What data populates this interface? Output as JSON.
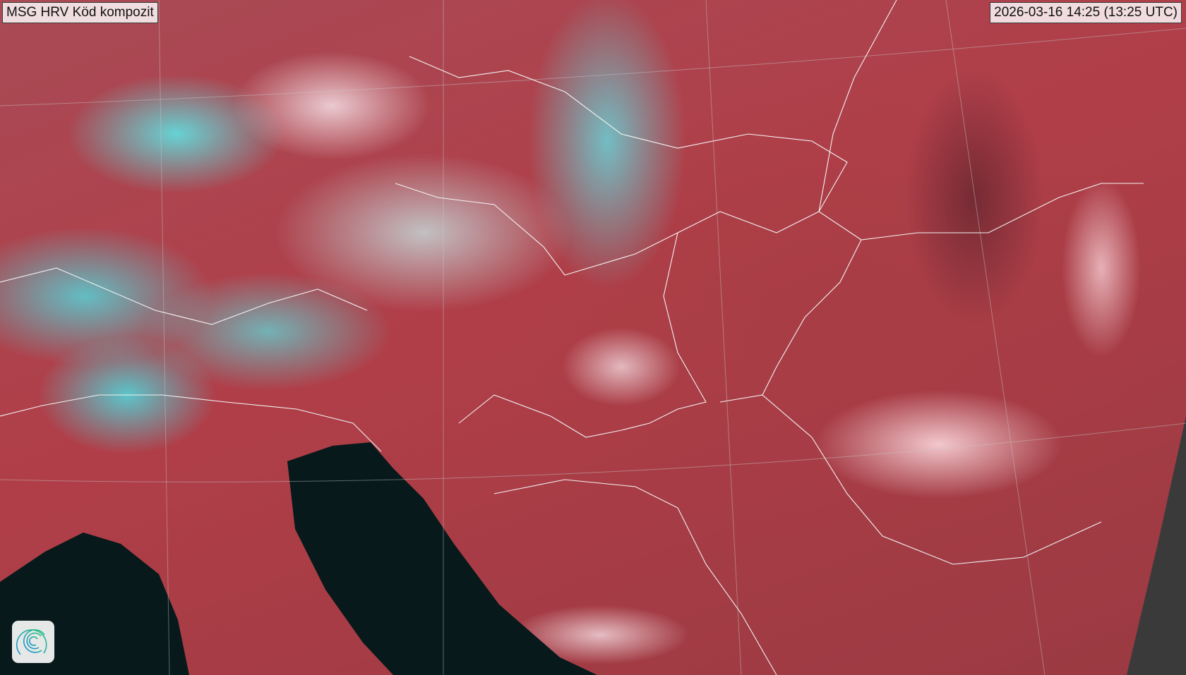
{
  "map": {
    "title": "MSG HRV Köd kompozit",
    "timestamp": "2026-03-16 14:25 (13:25 UTC)",
    "logo_icon": "spiral-logo-icon",
    "colors": {
      "land": "#a8404a",
      "cloud_ice": "#5de6e8",
      "cloud_low": "#f3dfe2",
      "sea": "#07191a",
      "no_data": "#3a3a3a"
    }
  }
}
